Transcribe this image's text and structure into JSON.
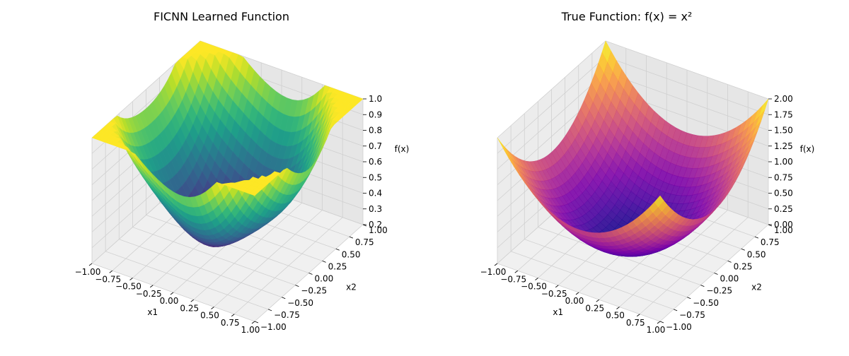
{
  "chart_data": [
    {
      "type": "surface3d",
      "title": "FICNN Learned Function",
      "xlabel": "x1",
      "ylabel": "x2",
      "zlabel": "f(x)",
      "colormap": "viridis",
      "xlim": [
        -1.0,
        1.0
      ],
      "ylim": [
        -1.0,
        1.0
      ],
      "zlim": [
        0.2,
        1.0
      ],
      "x_ticks": [
        "−1.00",
        "−0.75",
        "−0.50",
        "−0.25",
        "0.00",
        "0.25",
        "0.50",
        "0.75",
        "1.00"
      ],
      "y_ticks": [
        "−1.00",
        "−0.75",
        "−0.50",
        "−0.25",
        "0.00",
        "0.25",
        "0.50",
        "0.75",
        "1.00"
      ],
      "z_ticks": [
        "0.2",
        "0.3",
        "0.4",
        "0.5",
        "0.6",
        "0.7",
        "0.8",
        "0.9",
        "1.0"
      ],
      "z_tick_values": [
        0.2,
        0.3,
        0.4,
        0.5,
        0.6,
        0.7,
        0.8,
        0.9,
        1.0
      ],
      "surface_description": "learned approximation with min about 0.22 near center, clipped near 1.0 at corners",
      "grid": true
    },
    {
      "type": "surface3d",
      "title": "True Function: f(x) = x²",
      "xlabel": "x1",
      "ylabel": "x2",
      "zlabel": "f(x)",
      "colormap": "plasma",
      "xlim": [
        -1.0,
        1.0
      ],
      "ylim": [
        -1.0,
        1.0
      ],
      "zlim": [
        0.0,
        2.0
      ],
      "x_ticks": [
        "−1.00",
        "−0.75",
        "−0.50",
        "−0.25",
        "0.00",
        "0.25",
        "0.50",
        "0.75",
        "1.00"
      ],
      "y_ticks": [
        "−1.00",
        "−0.75",
        "−0.50",
        "−0.25",
        "0.00",
        "0.25",
        "0.50",
        "0.75",
        "1.00"
      ],
      "z_ticks": [
        "0.00",
        "0.25",
        "0.50",
        "0.75",
        "1.00",
        "1.25",
        "1.50",
        "1.75",
        "2.00"
      ],
      "z_tick_values": [
        0.0,
        0.25,
        0.5,
        0.75,
        1.0,
        1.25,
        1.5,
        1.75,
        2.0
      ],
      "function": "x1^2 + x2^2",
      "grid": true
    }
  ]
}
